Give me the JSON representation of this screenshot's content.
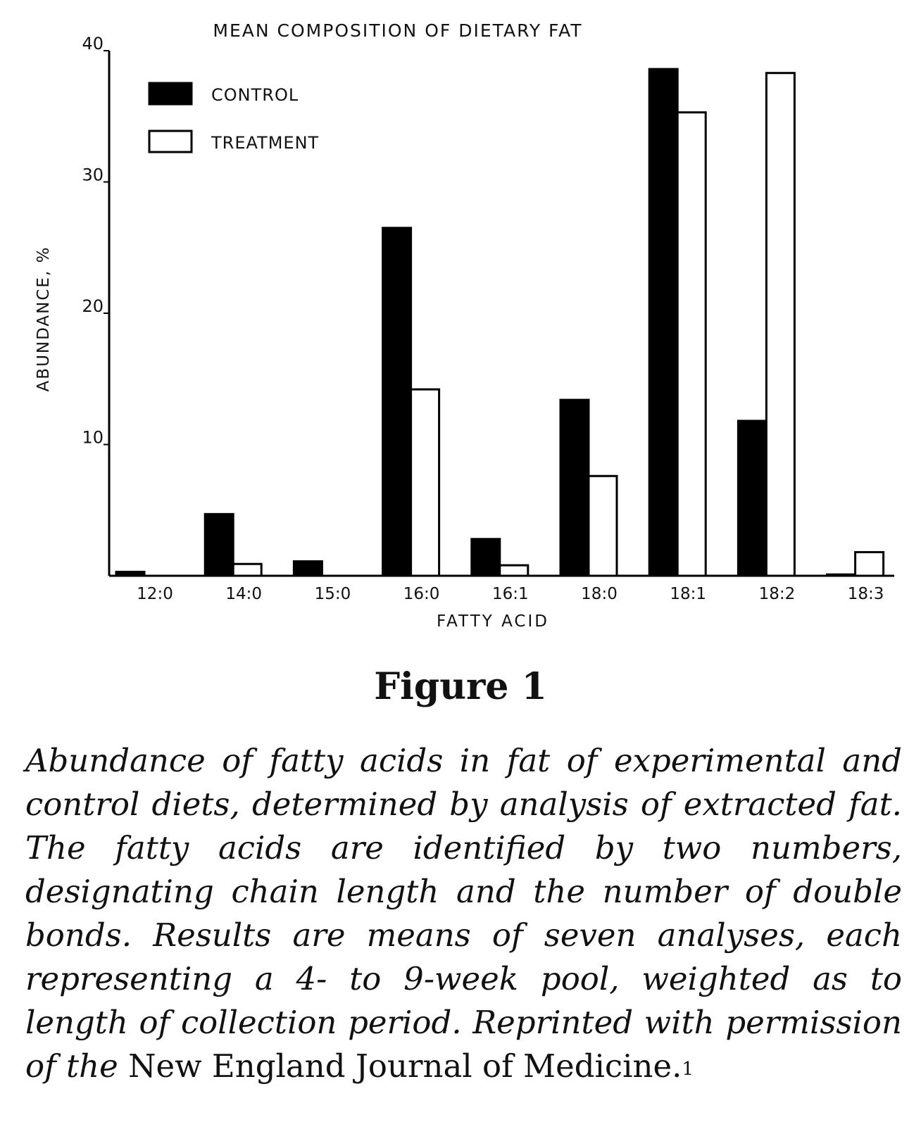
{
  "chart_data": {
    "type": "bar",
    "title": "MEAN COMPOSITION OF DIETARY FAT",
    "xlabel": "FATTY ACID",
    "ylabel": "ABUNDANCE, %",
    "ylim": [
      0,
      40
    ],
    "yticks": [
      "10",
      "20",
      "30",
      "40"
    ],
    "categories": [
      "12:0",
      "14:0",
      "15:0",
      "16:0",
      "16:1",
      "18:0",
      "18:1",
      "18:2",
      "18:3"
    ],
    "series": [
      {
        "name": "CONTROL",
        "color": "#000000",
        "values": [
          0.3,
          4.7,
          1.1,
          26.5,
          2.8,
          13.4,
          38.6,
          11.8,
          0.1
        ]
      },
      {
        "name": "TREATMENT",
        "color": "#ffffff",
        "values": [
          0.0,
          0.9,
          0.0,
          14.2,
          0.8,
          7.6,
          35.3,
          38.3,
          1.8
        ]
      }
    ],
    "legend": "top-left",
    "grid": false
  },
  "figure_label": "Figure 1",
  "caption": {
    "italic_text": "Abundance of fatty acids in fat of experimental and control diets, determined by analysis of extracted fat. The fatty acids are identified by two numbers, designating chain length and the number of double bonds. Results are means of seven analyses, each representing a 4- to 9-week pool, weighted as to length of collection period. Reprinted with permission of the",
    "roman_text": "New England Journal of Medicine.",
    "reference": "1"
  }
}
